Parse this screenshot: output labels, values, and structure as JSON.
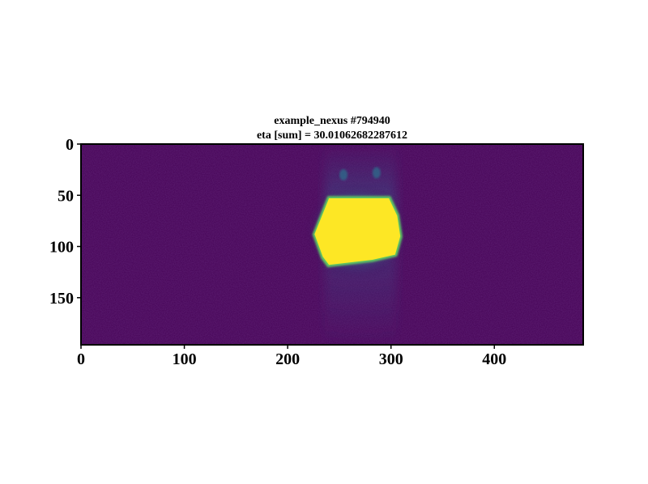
{
  "chart_data": {
    "type": "heatmap",
    "title_line1": "example_nexus #794940",
    "title_line2": "eta [sum] = 30.01062682287612",
    "xlabel": "",
    "ylabel": "",
    "image_width": 486,
    "image_height": 196,
    "xlim": [
      0,
      486
    ],
    "ylim": [
      196,
      0
    ],
    "x_ticks": [
      0,
      100,
      200,
      300,
      400
    ],
    "x_tick_labels": [
      "0",
      "100",
      "200",
      "300",
      "400"
    ],
    "y_ticks": [
      0,
      50,
      100,
      150
    ],
    "y_tick_labels": [
      "0",
      "50",
      "100",
      "150"
    ],
    "colormap": "viridis",
    "background_color": "#440154",
    "hot_color": "#fde725",
    "hot_region": {
      "x_range": [
        226,
        309
      ],
      "y_range": [
        52,
        118
      ],
      "polygon": [
        [
          240,
          53
        ],
        [
          298,
          53
        ],
        [
          306,
          70
        ],
        [
          309,
          90
        ],
        [
          304,
          108
        ],
        [
          282,
          113
        ],
        [
          240,
          118
        ],
        [
          234,
          110
        ],
        [
          226,
          88
        ],
        [
          234,
          68
        ]
      ]
    },
    "secondary_features": [
      {
        "x": 254,
        "y": 30,
        "label": ""
      },
      {
        "x": 286,
        "y": 28,
        "label": ""
      }
    ]
  }
}
